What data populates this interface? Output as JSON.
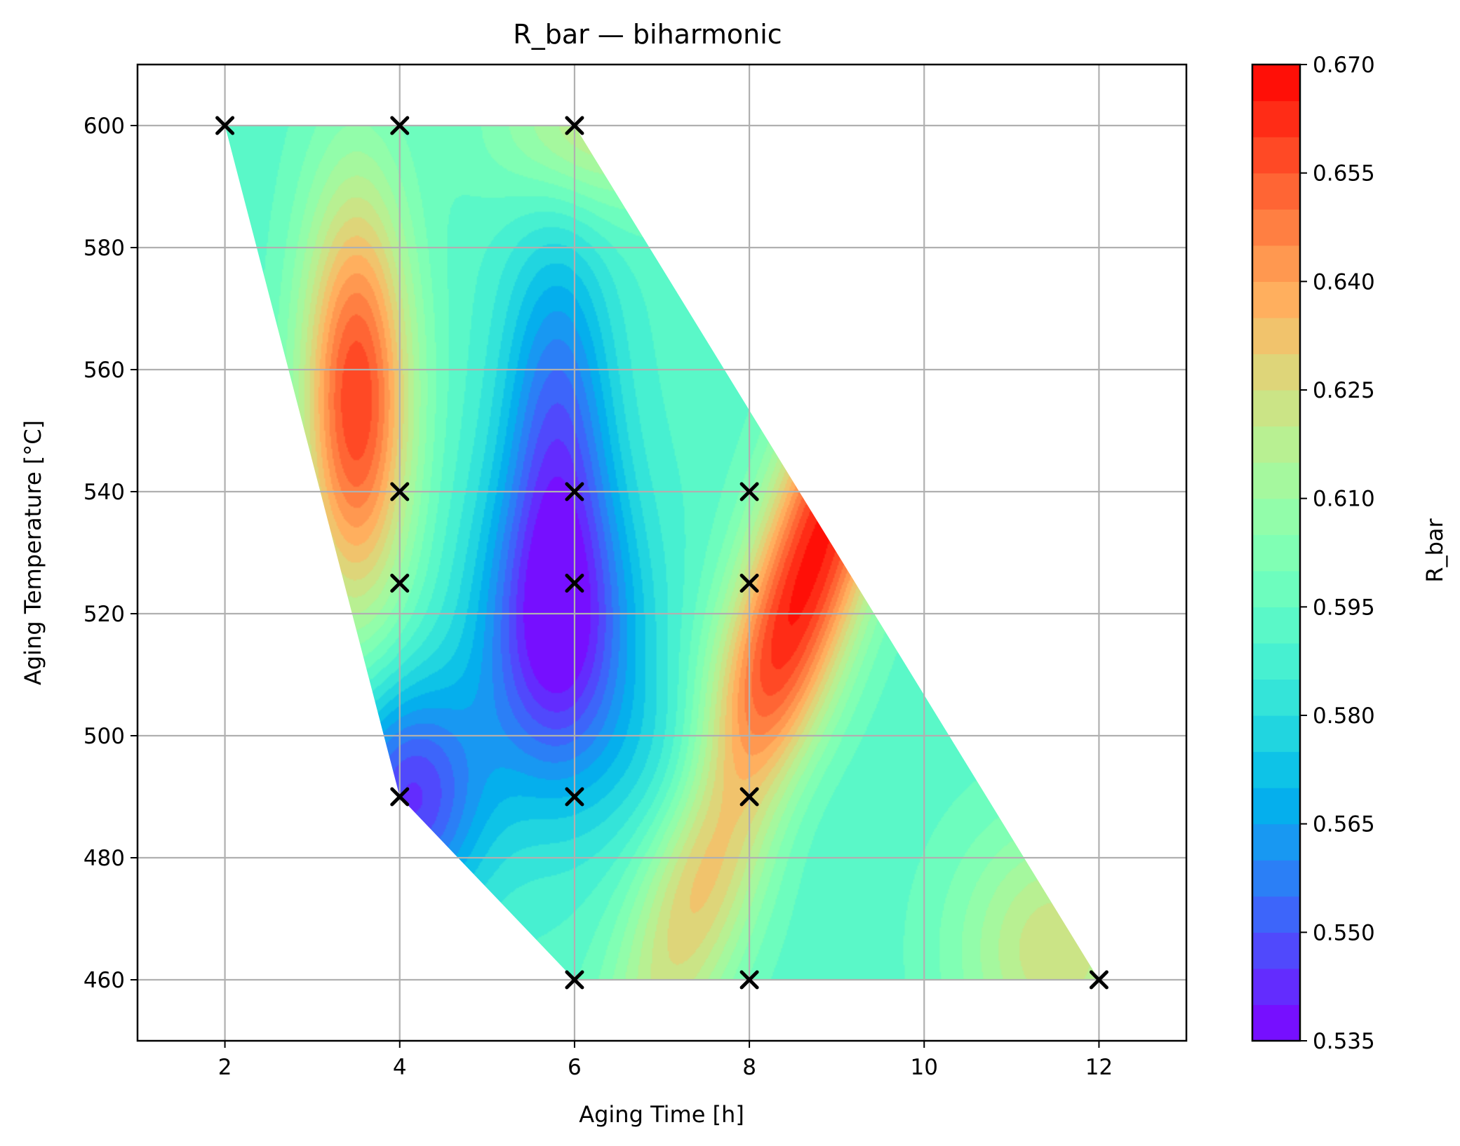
{
  "chart_data": {
    "type": "heatmap",
    "subtype": "filled-contour",
    "title": "R_bar — biharmonic",
    "xlabel": "Aging Time [h]",
    "ylabel": "Aging Temperature [°C]",
    "colorbar_label": "R_bar",
    "colormap": "rainbow",
    "xlim": [
      1,
      13
    ],
    "ylim": [
      450,
      610
    ],
    "x_ticks": [
      2,
      4,
      6,
      8,
      10,
      12
    ],
    "x_tick_labels": [
      "2",
      "4",
      "6",
      "8",
      "10",
      "12"
    ],
    "y_ticks": [
      460,
      480,
      500,
      520,
      540,
      560,
      580,
      600
    ],
    "y_tick_labels": [
      "460",
      "480",
      "500",
      "520",
      "540",
      "560",
      "580",
      "600"
    ],
    "colorbar_range": [
      0.535,
      0.67
    ],
    "colorbar_ticks": [
      0.535,
      0.55,
      0.565,
      0.58,
      0.595,
      0.61,
      0.625,
      0.64,
      0.655,
      0.67
    ],
    "colorbar_tick_labels": [
      "0.535",
      "0.550",
      "0.565",
      "0.580",
      "0.595",
      "0.610",
      "0.625",
      "0.640",
      "0.655",
      "0.670"
    ],
    "contour_levels": 27,
    "grid": true,
    "domain_polygon": [
      [
        2,
        600
      ],
      [
        6,
        600
      ],
      [
        12,
        460
      ],
      [
        6,
        460
      ],
      [
        4,
        490
      ],
      [
        2,
        600
      ]
    ],
    "samples": [
      {
        "x": 2,
        "y": 600
      },
      {
        "x": 4,
        "y": 600
      },
      {
        "x": 6,
        "y": 600
      },
      {
        "x": 4,
        "y": 540
      },
      {
        "x": 6,
        "y": 540
      },
      {
        "x": 8,
        "y": 540
      },
      {
        "x": 4,
        "y": 525
      },
      {
        "x": 6,
        "y": 525
      },
      {
        "x": 8,
        "y": 525
      },
      {
        "x": 4,
        "y": 490
      },
      {
        "x": 6,
        "y": 490
      },
      {
        "x": 8,
        "y": 490
      },
      {
        "x": 6,
        "y": 460
      },
      {
        "x": 8,
        "y": 460
      },
      {
        "x": 12,
        "y": 460
      }
    ],
    "field_features": [
      {
        "kind": "max",
        "x": 3.5,
        "y": 555,
        "value": 0.657
      },
      {
        "kind": "max",
        "x": 8.7,
        "y": 528,
        "value": 0.665
      },
      {
        "kind": "min",
        "x": 5.8,
        "y": 516,
        "value": 0.54
      },
      {
        "kind": "min",
        "x": 4.1,
        "y": 490,
        "value": 0.542
      },
      {
        "kind": "low",
        "x": 5.8,
        "y": 552,
        "value": 0.558
      }
    ]
  }
}
